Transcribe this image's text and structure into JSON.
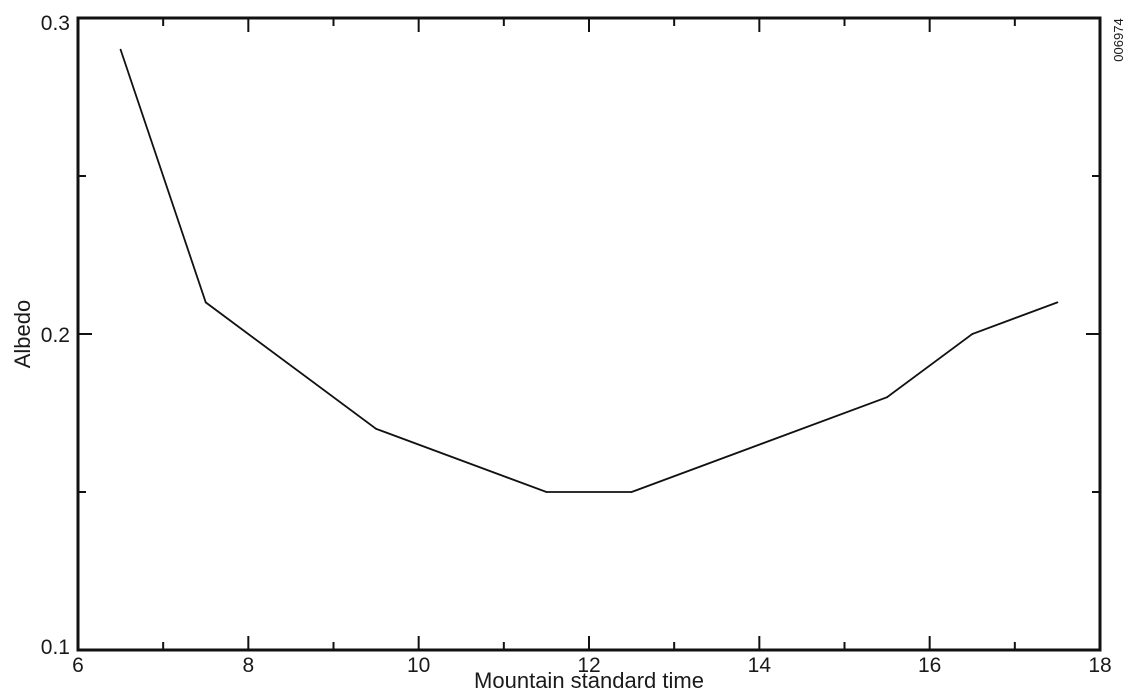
{
  "chart_data": {
    "type": "line",
    "xlabel": "Mountain standard time",
    "ylabel": "Albedo",
    "xlim": [
      6,
      18
    ],
    "ylim": [
      0.1,
      0.3
    ],
    "x_ticks": [
      6,
      8,
      10,
      12,
      14,
      16,
      18
    ],
    "x_tick_labels": [
      "6",
      "8",
      "10",
      "12",
      "14",
      "16",
      "18"
    ],
    "y_ticks": [
      0.1,
      0.2,
      0.3
    ],
    "y_tick_labels": [
      "0.1",
      "0.2",
      "0.3"
    ],
    "grid": false,
    "series": [
      {
        "x": [
          6.5,
          7.5,
          9.5,
          11.5,
          12.5,
          15.5,
          16.5,
          17.5
        ],
        "y": [
          0.29,
          0.21,
          0.17,
          0.15,
          0.15,
          0.18,
          0.2,
          0.21
        ]
      }
    ]
  },
  "side_code": "006974",
  "colors": {
    "line": "#111111",
    "frame": "#111111",
    "background": "#ffffff"
  }
}
